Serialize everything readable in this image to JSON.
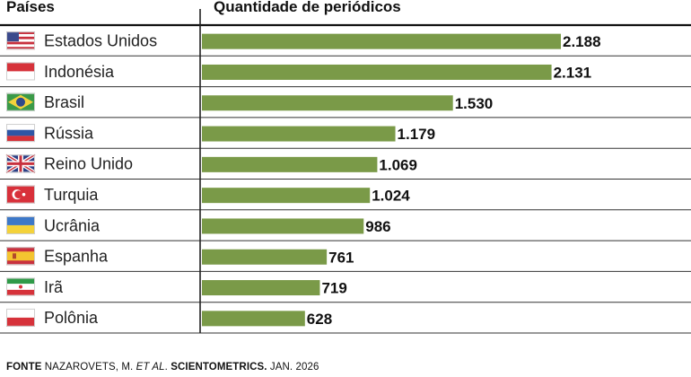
{
  "chart_data": {
    "type": "bar",
    "orientation": "horizontal",
    "header_left": "Países",
    "header_right": "Quantidade de periódicos",
    "categories": [
      "Estados Unidos",
      "Indonésia",
      "Brasil",
      "Rússia",
      "Reino Unido",
      "Turquia",
      "Ucrânia",
      "Espanha",
      "Irã",
      "Polônia"
    ],
    "values": [
      2188,
      2131,
      1530,
      1179,
      1069,
      1024,
      986,
      761,
      719,
      628
    ],
    "value_labels": [
      "2.188",
      "2.131",
      "1.530",
      "1.179",
      "1.069",
      "1.024",
      "986",
      "761",
      "719",
      "628"
    ],
    "flag_icons": [
      "flag-usa-icon",
      "flag-indonesia-icon",
      "flag-brazil-icon",
      "flag-russia-icon",
      "flag-uk-icon",
      "flag-turkey-icon",
      "flag-ukraine-icon",
      "flag-spain-icon",
      "flag-iran-icon",
      "flag-poland-icon"
    ],
    "xlim": [
      0,
      2188
    ],
    "bar_color": "#7a9a48",
    "grid": false
  },
  "source": {
    "label": "FONTE",
    "authors": "NAZAROVETS, M.",
    "etal": "ET AL",
    "journal": "SCIENTOMETRICS.",
    "date": "JAN. 2026"
  }
}
